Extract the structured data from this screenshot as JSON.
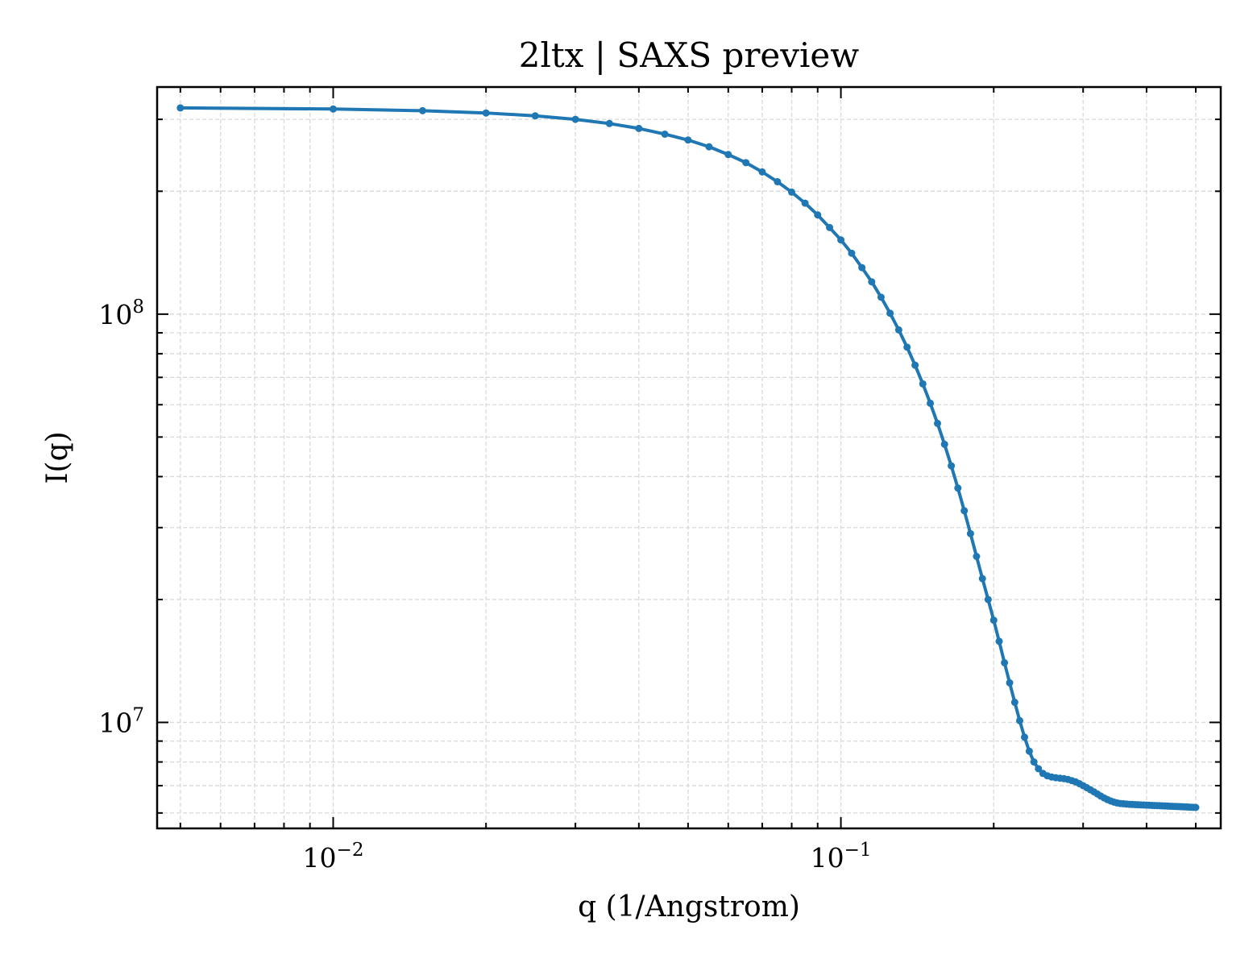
{
  "chart_data": {
    "type": "line",
    "title": "2ltx | SAXS preview",
    "xlabel": "q (1/Angstrom)",
    "ylabel": "I(q)",
    "xscale": "log",
    "yscale": "log",
    "xlim": [
      0.0045,
      0.56
    ],
    "ylim": [
      5500000,
      360000000
    ],
    "grid": true,
    "grid_which": "both",
    "tick_direction": "in",
    "x_major_ticks": [
      {
        "value": 0.01,
        "base": "10",
        "exp": "−2"
      },
      {
        "value": 0.1,
        "base": "10",
        "exp": "−1"
      }
    ],
    "y_major_ticks": [
      {
        "value": 10000000,
        "base": "10",
        "exp": "7"
      },
      {
        "value": 100000000,
        "base": "10",
        "exp": "8"
      }
    ],
    "colors": {
      "series": "#1f77b4",
      "grid": "#d9d9d9",
      "axes": "#000000"
    },
    "series": [
      {
        "x": [
          0.005,
          0.01,
          0.015,
          0.02,
          0.025,
          0.03,
          0.035,
          0.04,
          0.045,
          0.05,
          0.055,
          0.06,
          0.065,
          0.07,
          0.075,
          0.08,
          0.085,
          0.09,
          0.095,
          0.1,
          0.105,
          0.11,
          0.115,
          0.12,
          0.125,
          0.13,
          0.135,
          0.14,
          0.145,
          0.15,
          0.155,
          0.16,
          0.165,
          0.17,
          0.175,
          0.18,
          0.185,
          0.19,
          0.195,
          0.2,
          0.205,
          0.21,
          0.215,
          0.22,
          0.225,
          0.23,
          0.235,
          0.24,
          0.245,
          0.25,
          0.255,
          0.26,
          0.265,
          0.27,
          0.275,
          0.28,
          0.285,
          0.29,
          0.295,
          0.3,
          0.305,
          0.31,
          0.315,
          0.32,
          0.325,
          0.33,
          0.335,
          0.34,
          0.345,
          0.35,
          0.355,
          0.36,
          0.365,
          0.37,
          0.375,
          0.38,
          0.385,
          0.39,
          0.395,
          0.4,
          0.405,
          0.41,
          0.415,
          0.42,
          0.425,
          0.43,
          0.435,
          0.44,
          0.445,
          0.45,
          0.455,
          0.46,
          0.465,
          0.47,
          0.475,
          0.48,
          0.485,
          0.49,
          0.495,
          0.5
        ],
        "y": [
          320000000,
          318000000,
          315000000,
          311000000,
          306000000,
          300000000,
          293000000,
          285000000,
          276000000,
          267000000,
          257000000,
          246000000,
          235000000,
          223000000,
          211000000,
          199000000,
          187000000,
          175000000,
          163000000,
          152000000,
          141000000,
          130000000,
          120000000,
          110000000,
          100500000,
          91500000,
          83000000,
          75000000,
          67500000,
          60500000,
          54000000,
          48000000,
          42500000,
          37500000,
          33000000,
          29000000,
          25500000,
          22500000,
          20000000,
          17800000,
          15800000,
          14000000,
          12500000,
          11200000,
          10100000,
          9200000,
          8500000,
          8000000,
          7700000,
          7500000,
          7400000,
          7350000,
          7320000,
          7300000,
          7280000,
          7250000,
          7200000,
          7150000,
          7080000,
          7000000,
          6920000,
          6840000,
          6760000,
          6680000,
          6600000,
          6530000,
          6470000,
          6420000,
          6380000,
          6350000,
          6330000,
          6320000,
          6310000,
          6300000,
          6295000,
          6290000,
          6285000,
          6280000,
          6275000,
          6270000,
          6266000,
          6262000,
          6258000,
          6254000,
          6250000,
          6246000,
          6242000,
          6238000,
          6234000,
          6230000,
          6226000,
          6222000,
          6218000,
          6214000,
          6210000,
          6206000,
          6202000,
          6198000,
          6194000,
          6190000
        ]
      }
    ]
  }
}
